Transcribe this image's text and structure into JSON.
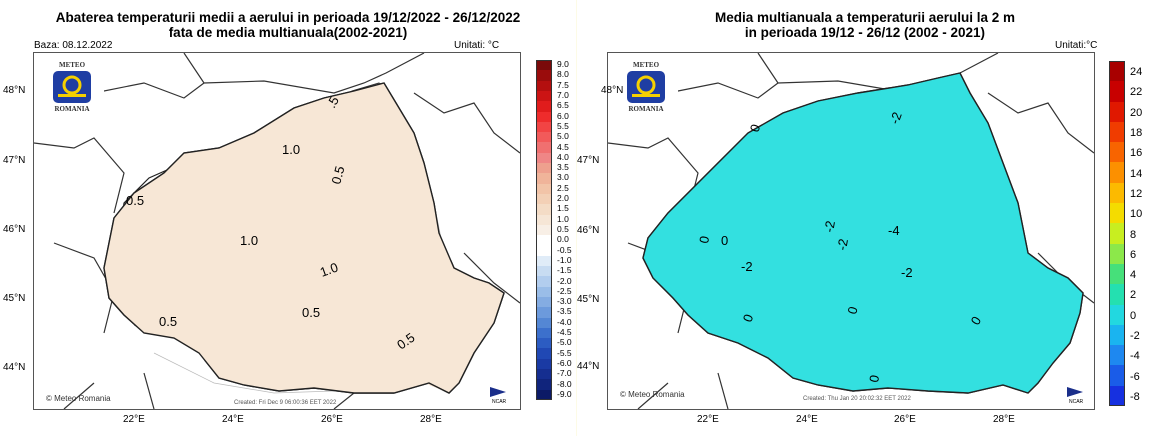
{
  "left": {
    "title_line1": "Abaterea temperaturii medii a aerului in perioada 19/12/2022 - 26/12/2022",
    "title_line2": "fata de media multianuala(2002-2021)",
    "base_label": "Baza: 08.12.2022",
    "units_label": "Unitati: °C",
    "lat_labels": [
      "48°N",
      "47°N",
      "46°N",
      "45°N",
      "44°N"
    ],
    "lon_labels": [
      "22°E",
      "24°E",
      "26°E",
      "28°E"
    ],
    "contour_labels": [
      "0.5",
      "0.5",
      "0.5",
      "0.5",
      "1.0",
      "1.0",
      "1.0",
      ".5",
      "0.5"
    ],
    "colorbar_labels": [
      "9.0",
      "8.0",
      "7.5",
      "7.0",
      "6.5",
      "6.0",
      "5.5",
      "5.0",
      "4.5",
      "4.0",
      "3.5",
      "3.0",
      "2.5",
      "2.0",
      "1.5",
      "1.0",
      "0.5",
      "0.0",
      "-0.5",
      "-1.0",
      "-1.5",
      "-2.0",
      "-2.5",
      "-3.0",
      "-3.5",
      "-4.0",
      "-4.5",
      "-5.0",
      "-5.5",
      "-6.0",
      "-7.0",
      "-8.0",
      "-9.0"
    ],
    "credit": "© Meteo Romania",
    "created": "Created: Fri Dec  9 06:00:36 EET 2022"
  },
  "right": {
    "title_line1": "Media multianuala a temperaturii aerului la 2 m",
    "title_line2": "in perioada 19/12 - 26/12 (2002 - 2021)",
    "units_label": "Unitati:°C",
    "lat_labels": [
      "48°N",
      "47°N",
      "46°N",
      "45°N",
      "44°N"
    ],
    "lon_labels": [
      "22°E",
      "24°E",
      "26°E",
      "28°E"
    ],
    "contour_labels": [
      "0",
      "0",
      "-2",
      "-2",
      "-4",
      "-2",
      "-2",
      "0",
      "0",
      "0",
      "0",
      "0",
      "-2"
    ],
    "colorbar_labels": [
      "24",
      "22",
      "20",
      "18",
      "16",
      "14",
      "12",
      "10",
      "8",
      "6",
      "4",
      "2",
      "0",
      "-2",
      "-4",
      "-6",
      "-8"
    ],
    "credit": "© Meteo Romania",
    "created": "Created: Thu Jan 20 20:02:32 EET 2022"
  },
  "logo": {
    "line1": "METEO",
    "line2": "ROMANIA"
  },
  "ncar_label": "NCAR",
  "colors": {
    "left_fill_light": "#f5e3d0",
    "left_fill_mid": "#f0d3b8",
    "left_fill_blue": "#d8e8f8",
    "right_cyan": "#33e0e0",
    "right_sky": "#1ab8f0",
    "right_blue": "#1f82f0",
    "right_deep": "#1a4fe0",
    "logo_blue": "#1f3ea3",
    "logo_yellow": "#f5d000"
  },
  "left_colorbar_colors": [
    "#7a0a0a",
    "#9a0c0c",
    "#b40f0f",
    "#cc1414",
    "#e01c1c",
    "#ee2c2c",
    "#f24444",
    "#f25a5a",
    "#f07070",
    "#ef8686",
    "#eea08e",
    "#f0b49a",
    "#f2c4a8",
    "#f3d0b6",
    "#f4dcc6",
    "#f6e6d6",
    "#f8efe6",
    "#ffffff",
    "#ffffff",
    "#e0ecf8",
    "#c8dcf2",
    "#b2cdee",
    "#9abde8",
    "#84ace2",
    "#6c9adc",
    "#5487d4",
    "#3c70cc",
    "#2c5cc2",
    "#2048b4",
    "#1a3aa4",
    "#152e90",
    "#10247c",
    "#0c1a66"
  ],
  "right_colorbar_colors": [
    "#a80000",
    "#c80000",
    "#e01800",
    "#f03c00",
    "#f86400",
    "#fc9000",
    "#fcba00",
    "#f4dc00",
    "#c8ee20",
    "#8ce84a",
    "#46e07a",
    "#24e0b0",
    "#22d8e0",
    "#1ab4f0",
    "#1e88f0",
    "#1a5ce8",
    "#1630e0"
  ]
}
